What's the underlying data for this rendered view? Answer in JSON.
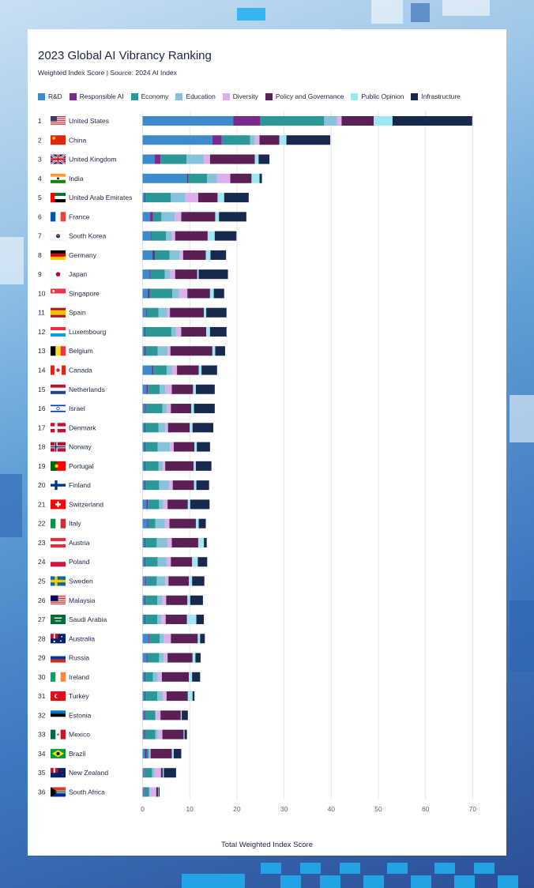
{
  "chart_data": {
    "type": "bar",
    "orientation": "horizontal",
    "stacked": true,
    "title": "2023 Global AI Vibrancy Ranking",
    "subtitle": "Weighted Index Score | Source: 2024 AI Index",
    "xlabel": "Total Weighted Index Score",
    "xlim": [
      0,
      70
    ],
    "xticks": [
      "0",
      "10",
      "20",
      "30",
      "40",
      "50",
      "60",
      "70"
    ],
    "grid": "vertical",
    "legend_position": "top",
    "series": [
      {
        "name": "R&D",
        "color": "#3d8bcd"
      },
      {
        "name": "Responsible AI",
        "color": "#7a2a8f"
      },
      {
        "name": "Economy",
        "color": "#2b9797"
      },
      {
        "name": "Education",
        "color": "#86c2dd"
      },
      {
        "name": "Diversity",
        "color": "#dcb0ec"
      },
      {
        "name": "Policy and Governance",
        "color": "#5a1f55"
      },
      {
        "name": "Public Opinion",
        "color": "#9ee9ef"
      },
      {
        "name": "Infrastructure",
        "color": "#18294f"
      }
    ],
    "rows": [
      {
        "rank": "1",
        "country": "United States",
        "flag": "us",
        "values": [
          19.2,
          5.8,
          13.5,
          2.7,
          1.0,
          6.8,
          4.0,
          16.9
        ]
      },
      {
        "rank": "2",
        "country": "China",
        "flag": "cn",
        "values": [
          14.8,
          2.0,
          6.0,
          1.0,
          1.0,
          4.2,
          1.5,
          9.3
        ]
      },
      {
        "rank": "3",
        "country": "United Kingdom",
        "flag": "uk",
        "values": [
          2.6,
          1.2,
          5.5,
          3.7,
          1.3,
          9.5,
          0.8,
          2.3
        ]
      },
      {
        "rank": "4",
        "country": "India",
        "flag": "in",
        "values": [
          9.4,
          0.3,
          4.0,
          2.1,
          2.8,
          4.5,
          1.7,
          0.5
        ]
      },
      {
        "rank": "5",
        "country": "United Arab Emirates",
        "flag": "ae",
        "values": [
          0.4,
          0.2,
          5.4,
          3.1,
          2.7,
          4.1,
          1.4,
          5.2
        ]
      },
      {
        "rank": "6",
        "country": "France",
        "flag": "fr",
        "values": [
          1.6,
          0.6,
          1.8,
          2.8,
          1.4,
          7.2,
          0.8,
          5.8
        ]
      },
      {
        "rank": "7",
        "country": "South Korea",
        "flag": "kr",
        "values": [
          1.7,
          0.2,
          3.1,
          1.2,
          0.7,
          6.9,
          1.5,
          4.6
        ]
      },
      {
        "rank": "8",
        "country": "Germany",
        "flag": "de",
        "values": [
          2.1,
          0.5,
          3.1,
          2.1,
          0.8,
          4.8,
          1.0,
          3.3
        ]
      },
      {
        "rank": "9",
        "country": "Japan",
        "flag": "jp",
        "values": [
          1.5,
          0.2,
          3.0,
          1.2,
          1.0,
          4.7,
          0.3,
          6.2
        ]
      },
      {
        "rank": "10",
        "country": "Singapore",
        "flag": "sg",
        "values": [
          1.1,
          0.4,
          4.8,
          1.4,
          1.8,
          4.8,
          0.8,
          2.2
        ]
      },
      {
        "rank": "11",
        "country": "Spain",
        "flag": "es",
        "values": [
          0.7,
          0.2,
          2.5,
          1.8,
          0.6,
          7.2,
          0.5,
          4.3
        ]
      },
      {
        "rank": "12",
        "country": "Luxembourg",
        "flag": "lu",
        "values": [
          0.4,
          0.2,
          5.5,
          1.0,
          1.1,
          5.3,
          0.8,
          3.5
        ]
      },
      {
        "rank": "13",
        "country": "Belgium",
        "flag": "be",
        "values": [
          0.4,
          0.3,
          2.5,
          2.1,
          0.6,
          8.9,
          0.6,
          2.1
        ]
      },
      {
        "rank": "14",
        "country": "Canada",
        "flag": "ca",
        "values": [
          2.0,
          0.3,
          2.8,
          1.1,
          1.1,
          4.6,
          0.6,
          3.3
        ]
      },
      {
        "rank": "15",
        "country": "Netherlands",
        "flag": "nl",
        "values": [
          0.8,
          0.3,
          2.5,
          1.2,
          1.4,
          4.5,
          0.6,
          4.0
        ]
      },
      {
        "rank": "16",
        "country": "Israel",
        "flag": "il",
        "values": [
          0.5,
          0.2,
          3.5,
          0.9,
          0.9,
          4.3,
          0.6,
          4.4
        ]
      },
      {
        "rank": "17",
        "country": "Denmark",
        "flag": "dk",
        "values": [
          0.4,
          0.2,
          2.8,
          1.4,
          0.6,
          4.6,
          0.6,
          4.4
        ]
      },
      {
        "rank": "18",
        "country": "Norway",
        "flag": "no",
        "values": [
          0.4,
          0.2,
          2.6,
          2.6,
          0.8,
          4.4,
          0.5,
          2.8
        ]
      },
      {
        "rank": "19",
        "country": "Portugal",
        "flag": "pt",
        "values": [
          0.4,
          0.2,
          2.8,
          0.9,
          0.5,
          6.0,
          0.5,
          3.3
        ]
      },
      {
        "rank": "20",
        "country": "Finland",
        "flag": "fi",
        "values": [
          0.4,
          0.2,
          2.9,
          2.1,
          0.8,
          4.5,
          0.5,
          2.7
        ]
      },
      {
        "rank": "21",
        "country": "Switzerland",
        "flag": "ch",
        "values": [
          0.8,
          0.3,
          2.4,
          0.9,
          0.9,
          4.3,
          0.5,
          4.1
        ]
      },
      {
        "rank": "22",
        "country": "Italy",
        "flag": "it",
        "values": [
          1.0,
          0.2,
          1.5,
          2.0,
          1.0,
          5.6,
          0.6,
          1.5
        ]
      },
      {
        "rank": "23",
        "country": "Austria",
        "flag": "at",
        "values": [
          0.4,
          0.2,
          2.4,
          2.3,
          0.9,
          5.6,
          1.2,
          0.6
        ]
      },
      {
        "rank": "24",
        "country": "Poland",
        "flag": "pl",
        "values": [
          0.4,
          0.2,
          2.6,
          1.9,
          0.9,
          4.5,
          1.2,
          2.0
        ]
      },
      {
        "rank": "25",
        "country": "Sweden",
        "flag": "se",
        "values": [
          0.6,
          0.2,
          2.2,
          1.8,
          0.7,
          4.3,
          0.7,
          2.6
        ]
      },
      {
        "rank": "26",
        "country": "Malaysia",
        "flag": "my",
        "values": [
          0.4,
          0.2,
          2.5,
          1.0,
          0.9,
          4.5,
          0.6,
          2.7
        ]
      },
      {
        "rank": "27",
        "country": "Saudi Arabia",
        "flag": "sa",
        "values": [
          0.4,
          0.2,
          2.5,
          0.9,
          0.9,
          4.5,
          2.0,
          1.6
        ]
      },
      {
        "rank": "28",
        "country": "Australia",
        "flag": "au",
        "values": [
          1.2,
          0.2,
          2.2,
          0.9,
          1.5,
          5.7,
          0.5,
          1.0
        ]
      },
      {
        "rank": "29",
        "country": "Russia",
        "flag": "ru",
        "values": [
          0.8,
          0.2,
          2.5,
          1.0,
          0.8,
          5.3,
          0.6,
          1.1
        ]
      },
      {
        "rank": "30",
        "country": "Ireland",
        "flag": "ie",
        "values": [
          0.4,
          0.2,
          1.6,
          1.0,
          0.9,
          5.7,
          0.7,
          1.7
        ]
      },
      {
        "rank": "31",
        "country": "Turkey",
        "flag": "tr",
        "values": [
          0.4,
          0.2,
          2.5,
          1.2,
          0.8,
          4.5,
          1.0,
          0.4
        ]
      },
      {
        "rank": "32",
        "country": "Estonia",
        "flag": "ee",
        "values": [
          0.3,
          0.2,
          2.2,
          0.1,
          1.0,
          4.3,
          0.2,
          1.3
        ]
      },
      {
        "rank": "33",
        "country": "Mexico",
        "flag": "mx",
        "values": [
          0.3,
          0.2,
          2.2,
          0.5,
          1.0,
          4.5,
          0.2,
          0.5
        ]
      },
      {
        "rank": "34",
        "country": "Brazil",
        "flag": "br",
        "values": [
          0.5,
          0.4,
          0.4,
          0.3,
          0.1,
          4.5,
          0.4,
          1.6
        ]
      },
      {
        "rank": "35",
        "country": "New Zealand",
        "flag": "nz",
        "values": [
          0.3,
          0.1,
          1.6,
          0.5,
          1.4,
          0.4,
          0.2,
          2.6
        ]
      },
      {
        "rank": "36",
        "country": "South Africa",
        "flag": "za",
        "values": [
          0.3,
          0.1,
          1.0,
          0.1,
          1.4,
          0.4,
          0.1,
          0.2
        ]
      }
    ]
  }
}
